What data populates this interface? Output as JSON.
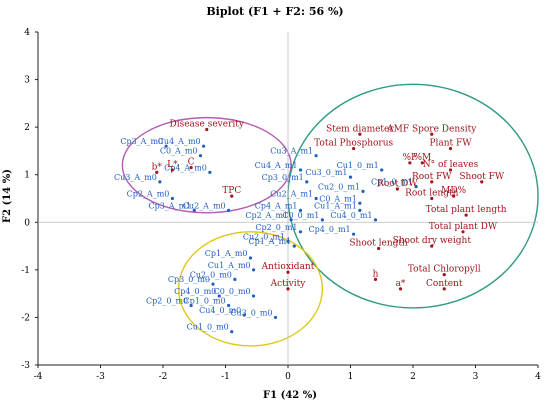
{
  "chart_data": {
    "type": "scatter",
    "title": "Biplot (F1 + F2: 56 %)",
    "xlabel": "F1 (42 %)",
    "ylabel": "F2 (14 %)",
    "xlim": [
      -4,
      4
    ],
    "ylim": [
      -3,
      4
    ],
    "xticks": [
      "-4",
      "-3",
      "-2",
      "-1",
      "0",
      "1",
      "2",
      "3",
      "4"
    ],
    "yticks": [
      "-3",
      "-2",
      "-1",
      "0",
      "1",
      "2",
      "3",
      "4"
    ],
    "grid": false,
    "colors": {
      "observations": "#1f5fbf",
      "variables": "#a0151b",
      "ellipse_purple": "#b55bb5",
      "ellipse_green": "#2e9a82",
      "ellipse_yellow": "#e0c81a",
      "axis": "#222222",
      "zero_line": "#bbbbbb"
    },
    "observations": [
      {
        "label": "Cp3_A_m0",
        "x": -1.95,
        "y": 1.6
      },
      {
        "label": "Cu4_A_m0",
        "x": -1.35,
        "y": 1.6
      },
      {
        "label": "C0_A_m0",
        "x": -1.4,
        "y": 1.4
      },
      {
        "label": "Cp4_A_m0",
        "x": -1.25,
        "y": 1.05
      },
      {
        "label": "Cu3_A_m0",
        "x": -2.05,
        "y": 0.85
      },
      {
        "label": "Cp2_A_m0",
        "x": -1.85,
        "y": 0.5
      },
      {
        "label": "Cp3_A_m1",
        "x": -1.5,
        "y": 0.25
      },
      {
        "label": "Cu2_A_m0",
        "x": -0.95,
        "y": 0.25
      },
      {
        "label": "Cu3_A_m1",
        "x": 0.45,
        "y": 1.4
      },
      {
        "label": "Cu4_A_m1",
        "x": 0.2,
        "y": 1.1
      },
      {
        "label": "Cp3_0_m1",
        "x": 0.3,
        "y": 0.85
      },
      {
        "label": "Cu2_A_m1",
        "x": 0.45,
        "y": 0.5
      },
      {
        "label": "Cp4_A_m1",
        "x": 0.2,
        "y": 0.25
      },
      {
        "label": "Cp2_A_m1",
        "x": 0.05,
        "y": 0.05
      },
      {
        "label": "C0_0_m1",
        "x": 0.55,
        "y": 0.05
      },
      {
        "label": "Cp2_0_m1",
        "x": 0.2,
        "y": -0.2
      },
      {
        "label": "Cu2_0_m1",
        "x": 0.0,
        "y": -0.4
      },
      {
        "label": "Cp1_A_m1",
        "x": 0.1,
        "y": -0.5
      },
      {
        "label": "Cu1_A_m1",
        "x": 1.15,
        "y": 0.25
      },
      {
        "label": "Cp4_0_m1",
        "x": 1.05,
        "y": -0.25
      },
      {
        "label": "Cu4_0_m1",
        "x": 1.4,
        "y": 0.05
      },
      {
        "label": "Cu3_0_m1",
        "x": 1.0,
        "y": 0.95
      },
      {
        "label": "Cu2_0_m1",
        "x": 1.2,
        "y": 0.65
      },
      {
        "label": "C0_A_m1",
        "x": 1.15,
        "y": 0.4
      },
      {
        "label": "Cu1_0_m1",
        "x": 1.5,
        "y": 1.1
      },
      {
        "label": "Cp1_0_m1",
        "x": 2.05,
        "y": 0.75
      },
      {
        "label": "Cp1_A_m0",
        "x": -0.6,
        "y": -0.75
      },
      {
        "label": "Cu1_A_m0",
        "x": -0.55,
        "y": -1.0
      },
      {
        "label": "Cp3_0_m0",
        "x": -1.2,
        "y": -1.3
      },
      {
        "label": "Cu2_0_m0",
        "x": -0.85,
        "y": -1.2
      },
      {
        "label": "Cp4_0_m0",
        "x": -1.1,
        "y": -1.55
      },
      {
        "label": "C0_0_m0",
        "x": -0.55,
        "y": -1.55
      },
      {
        "label": "Cp2_0_m0",
        "x": -1.55,
        "y": -1.75
      },
      {
        "label": "Cp1_0_m0",
        "x": -0.95,
        "y": -1.75
      },
      {
        "label": "Cu4_0_m0",
        "x": -0.7,
        "y": -1.95
      },
      {
        "label": "Cu3_0_m0",
        "x": -0.2,
        "y": -2.0
      },
      {
        "label": "Cu1_0_m0",
        "x": -0.9,
        "y": -2.3
      }
    ],
    "variables": [
      {
        "label": "Disease severity",
        "x": -1.3,
        "y": 1.95
      },
      {
        "label": "L*",
        "x": -1.85,
        "y": 1.1
      },
      {
        "label": "b*",
        "x": -2.1,
        "y": 1.05
      },
      {
        "label": "C",
        "x": -1.55,
        "y": 1.15
      },
      {
        "label": "TPC",
        "x": -0.9,
        "y": 0.55
      },
      {
        "label": "Stem diameter",
        "x": 1.15,
        "y": 1.85
      },
      {
        "label": "Total Phosphorus",
        "x": 1.05,
        "y": 1.55
      },
      {
        "label": "AMF Spore Density",
        "x": 2.3,
        "y": 1.85
      },
      {
        "label": "Plant FW",
        "x": 2.6,
        "y": 1.55
      },
      {
        "label": "%M",
        "x": 2.15,
        "y": 1.25
      },
      {
        "label": "%F",
        "x": 1.95,
        "y": 1.25
      },
      {
        "label": "N° of leaves",
        "x": 2.6,
        "y": 1.1
      },
      {
        "label": "Shoot FW",
        "x": 3.1,
        "y": 0.85
      },
      {
        "label": "Root DW",
        "x": 1.75,
        "y": 0.7
      },
      {
        "label": "Root FW",
        "x": 2.3,
        "y": 0.85
      },
      {
        "label": "MD%",
        "x": 2.65,
        "y": 0.55
      },
      {
        "label": "Root length",
        "x": 2.3,
        "y": 0.5
      },
      {
        "label": "Total plant length",
        "x": 2.85,
        "y": 0.15
      },
      {
        "label": "Total plant DW",
        "x": 2.8,
        "y": -0.2
      },
      {
        "label": "Shoot dry weight",
        "x": 2.3,
        "y": -0.5
      },
      {
        "label": "Shoot length",
        "x": 1.45,
        "y": -0.55
      },
      {
        "label": "Total Chloropyll",
        "x": 2.5,
        "y": -1.1
      },
      {
        "label": "Content",
        "x": 2.5,
        "y": -1.4
      },
      {
        "label": "h",
        "x": 1.4,
        "y": -1.2
      },
      {
        "label": "a*",
        "x": 1.8,
        "y": -1.4
      },
      {
        "label": "Antioxidant",
        "x": 0.0,
        "y": -1.05
      },
      {
        "label": "Activity",
        "x": 0.0,
        "y": -1.4
      }
    ],
    "ellipses": [
      {
        "name": "purple",
        "cx": -1.3,
        "cy": 1.2,
        "rx": 1.35,
        "ry": 1.0
      },
      {
        "name": "green",
        "cx": 2.0,
        "cy": 0.55,
        "rx": 2.0,
        "ry": 2.35
      },
      {
        "name": "yellow",
        "cx": -0.6,
        "cy": -1.4,
        "rx": 1.15,
        "ry": 1.2
      }
    ]
  }
}
